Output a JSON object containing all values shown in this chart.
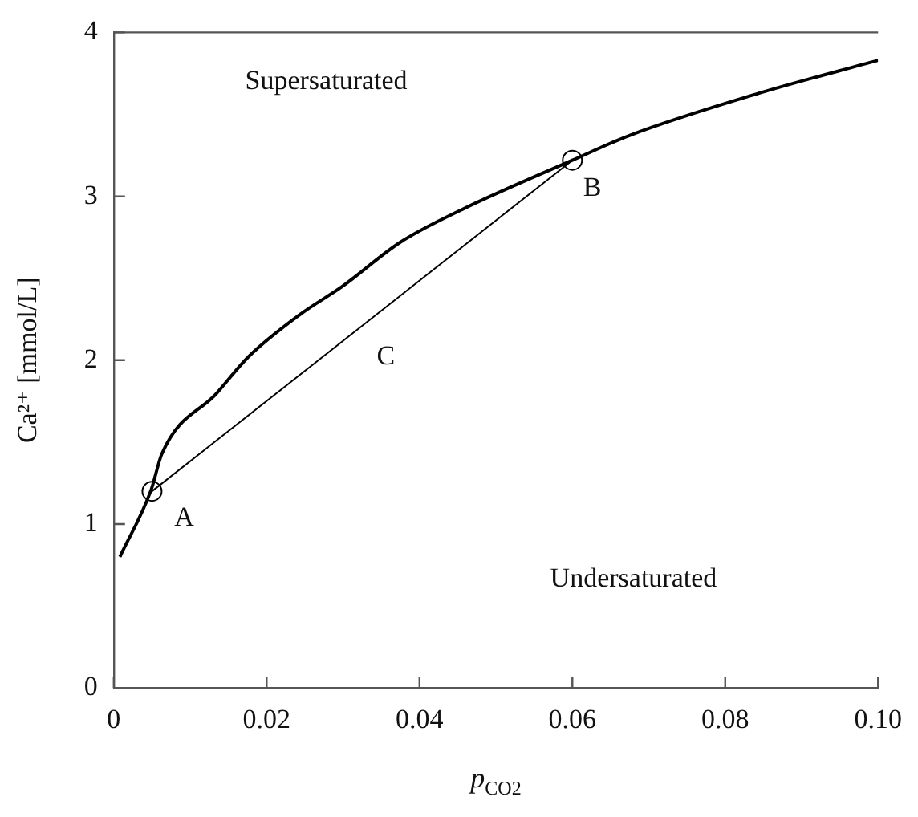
{
  "chart_data": {
    "type": "line",
    "xlabel": "p$_{CO2}$",
    "ylabel": "Ca²⁺ [mmol/L]",
    "xlim": [
      0,
      0.1
    ],
    "ylim": [
      0,
      4
    ],
    "xticks": [
      0,
      0.02,
      0.04,
      0.06,
      0.08,
      {
        "value": 0.1,
        "label": "0.10"
      }
    ],
    "yticks": [
      0,
      1,
      2,
      3,
      4
    ],
    "grid": false,
    "legend": false,
    "series": [
      {
        "type": "line",
        "color": "#000000",
        "x": [
          0.0008,
          0.0049,
          0.0063,
          0.0135,
          0.0176,
          0.0244,
          0.0299,
          0.0375,
          0.0456,
          0.06,
          0.0674,
          0.0845,
          0.1
        ],
        "values": [
          0.8,
          1.21,
          1.43,
          1.8,
          2.02,
          2.28,
          2.45,
          2.72,
          2.92,
          3.22,
          3.37,
          3.63,
          3.83
        ]
      },
      {
        "type": "line",
        "color": "#000000",
        "x": [
          0.005,
          0.06
        ],
        "values": [
          1.2,
          3.22
        ]
      },
      {
        "type": "scatter",
        "color": "#000000",
        "marker": "circle",
        "x": [
          0.005,
          0.06
        ],
        "values": [
          1.2,
          3.22
        ]
      }
    ],
    "annotations": [
      "Supersaturated",
      "Undersaturated",
      "A",
      "B",
      "C"
    ]
  }
}
